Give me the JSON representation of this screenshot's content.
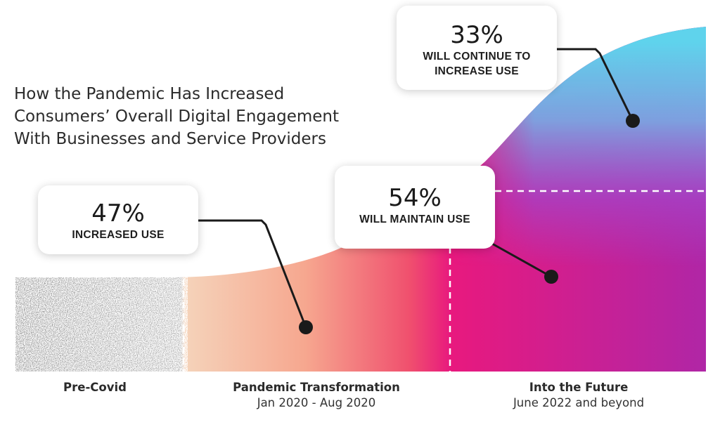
{
  "title_lines": [
    "How the Pandemic Has Increased",
    "Consumers’ Overall Digital Engagement",
    "With Businesses and Service Providers"
  ],
  "callouts": {
    "increased": {
      "value": "47%",
      "label": [
        "INCREASED USE"
      ]
    },
    "maintain": {
      "value": "54%",
      "label": [
        "WILL MAINTAIN USE"
      ]
    },
    "continue": {
      "value": "33%",
      "label": [
        "WILL CONTINUE TO",
        "INCREASE USE"
      ]
    }
  },
  "phases": [
    {
      "name": "Pre-Covid",
      "dates": ""
    },
    {
      "name": "Pandemic Transformation",
      "dates": "Jan 2020 - Aug 2020"
    },
    {
      "name": "Into the Future",
      "dates": "June 2022 and beyond"
    }
  ],
  "chart_data": {
    "type": "area",
    "categories": [
      "Pre-Covid",
      "Pandemic Transformation",
      "Into the Future"
    ],
    "values": [
      {
        "label": "INCREASED USE",
        "percent": 47
      },
      {
        "label": "WILL MAINTAIN USE",
        "percent": 54
      },
      {
        "label": "WILL CONTINUE TO INCREASE USE",
        "percent": 33
      }
    ],
    "colors": {
      "pre_covid": "#a8a8a8",
      "pandemic_start": "#f3c7a6",
      "pandemic_end": "#f0506e",
      "future_pink": "#e8197e",
      "future_purple": "#a43ec4",
      "future_cyan": "#5fd3ec"
    }
  }
}
